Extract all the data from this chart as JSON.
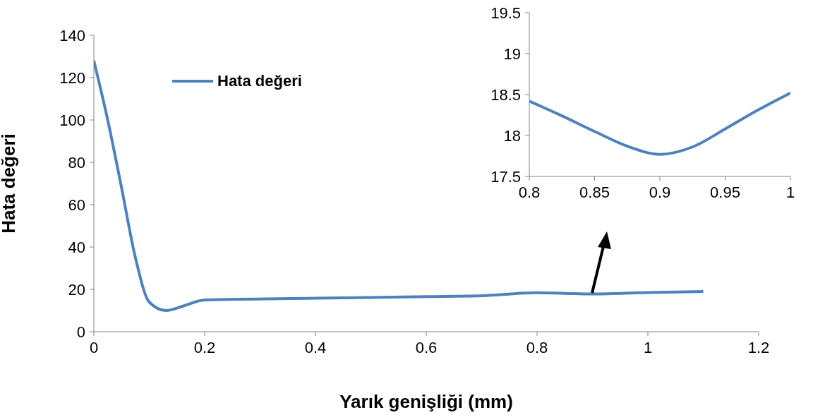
{
  "chart_data": [
    {
      "type": "line",
      "xlabel": "Yarık genişliği (mm)",
      "ylabel": "Hata değeri",
      "xlim": [
        0,
        1.2
      ],
      "xticks": [
        0,
        0.2,
        0.4,
        0.6,
        0.8,
        1,
        1.2
      ],
      "ylim": [
        0,
        140
      ],
      "yticks": [
        0,
        20,
        40,
        60,
        80,
        100,
        120,
        140
      ],
      "grid": false,
      "legend": "top left",
      "marker": "none",
      "line_style": "solid",
      "series": [
        {
          "name": "Hata değeri",
          "color": "#4f81bd",
          "x": [
            0,
            0.025,
            0.05,
            0.075,
            0.1,
            0.13,
            0.16,
            0.2,
            0.4,
            0.6,
            0.7,
            0.8,
            0.85,
            0.9,
            0.95,
            1,
            1.1
          ],
          "values": [
            128,
            100,
            68,
            35,
            14,
            10,
            12,
            15,
            15.8,
            16.6,
            17,
            18.4,
            18.1,
            17.8,
            18.1,
            18.5,
            19
          ]
        }
      ]
    },
    {
      "type": "line",
      "xlim": [
        0.8,
        1
      ],
      "xticks": [
        0.8,
        0.85,
        0.9,
        0.95,
        1
      ],
      "ylim": [
        17.5,
        19.5
      ],
      "yticks": [
        17.5,
        18,
        18.5,
        19,
        19.5
      ],
      "grid": false,
      "legend": false,
      "marker": "none",
      "line_style": "solid",
      "series": [
        {
          "color": "#4f81bd",
          "x": [
            0.8,
            0.825,
            0.85,
            0.875,
            0.9,
            0.925,
            0.95,
            0.975,
            1
          ],
          "values": [
            18.42,
            18.24,
            18.05,
            17.87,
            17.77,
            17.86,
            18.08,
            18.31,
            18.52
          ]
        }
      ]
    }
  ]
}
